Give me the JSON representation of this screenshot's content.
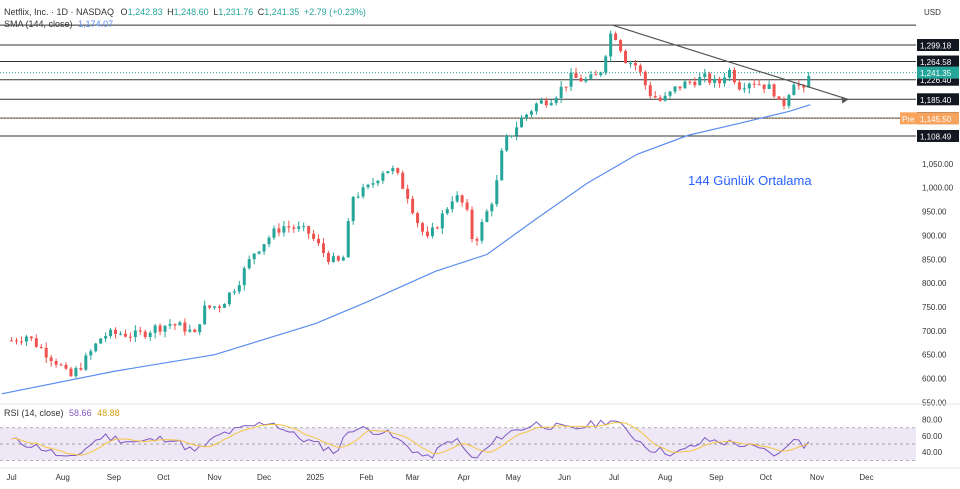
{
  "header": {
    "symbol": "Netflix, Inc. · 1D · NASDAQ",
    "o_label": "O",
    "o_value": "1,242.83",
    "h_label": "H",
    "h_value": "1,248.60",
    "l_label": "L",
    "l_value": "1,231.76",
    "c_label": "C",
    "c_value": "1,241.35",
    "change": "+2.79 (+0.23%)",
    "sma_label": "SMA (144, close)",
    "sma_value": "1,174.07",
    "currency": "USD"
  },
  "rsi": {
    "label": "RSI (14, close)",
    "value": "58.66",
    "ma_value": "48.88",
    "ticks": [
      "80.00",
      "60.00",
      "40.00"
    ],
    "band_upper": 70,
    "band_lower": 30,
    "ylim": [
      28,
      82
    ]
  },
  "annotation": "144 Günlük Ortalama",
  "prev_tag": "Pre",
  "colors": {
    "up": "#26a69a",
    "down": "#ef5350",
    "sma": "#5b8def",
    "rsi_line": "#7e57c2",
    "rsi_ma": "#f5c542",
    "rsi_band": "#ede7f6",
    "level_line": "#333333",
    "trendline": "#555555",
    "annotation": "#2962ff",
    "price_tag": "#26a69a",
    "pre_tag": "#f7a35c"
  },
  "chart_data": {
    "type": "candlestick",
    "title": "Netflix, Inc. · 1D · NASDAQ",
    "ylim": [
      555,
      1360
    ],
    "y_ticks": [
      "1,050.00",
      "1,000.00",
      "950.00",
      "900.00",
      "850.00",
      "800.00",
      "750.00",
      "700.00",
      "650.00",
      "600.00",
      "550.00"
    ],
    "x_ticks": [
      "Jul",
      "Aug",
      "Sep",
      "Oct",
      "Nov",
      "Dec",
      "2025",
      "Feb",
      "Mar",
      "Apr",
      "May",
      "Jun",
      "Jul",
      "Aug",
      "Sep",
      "Oct",
      "Nov",
      "Dec"
    ],
    "horizontal_levels": [
      {
        "value": 1341,
        "label": ""
      },
      {
        "value": 1299.18,
        "label": "1,299.18"
      },
      {
        "value": 1264.58,
        "label": "1,264.58"
      },
      {
        "value": 1226.4,
        "label": "1,226.40"
      },
      {
        "value": 1185.4,
        "label": "1,185.40"
      },
      {
        "value": 1145.8,
        "label": "1,145.80"
      },
      {
        "value": 1108.49,
        "label": "1,108.49"
      }
    ],
    "price_labels": [
      {
        "value": 1241.35,
        "label": "1,241.35",
        "kind": "last"
      },
      {
        "value": 1145.5,
        "label": "1,145.50",
        "kind": "pre"
      }
    ],
    "trendline": {
      "start": [
        "2025-06-30",
        1341
      ],
      "end": [
        "2025-11-20",
        1185
      ]
    },
    "price_path": [
      [
        "2024-07-01",
        680
      ],
      [
        "2024-07-10",
        690
      ],
      [
        "2024-07-20",
        660
      ],
      [
        "2024-07-30",
        630
      ],
      [
        "2024-08-05",
        600
      ],
      [
        "2024-08-15",
        640
      ],
      [
        "2024-08-25",
        690
      ],
      [
        "2024-09-05",
        695
      ],
      [
        "2024-09-15",
        690
      ],
      [
        "2024-09-25",
        705
      ],
      [
        "2024-10-05",
        715
      ],
      [
        "2024-10-15",
        705
      ],
      [
        "2024-10-20",
        690
      ],
      [
        "2024-10-25",
        745
      ],
      [
        "2024-11-05",
        755
      ],
      [
        "2024-11-15",
        800
      ],
      [
        "2024-11-25",
        865
      ],
      [
        "2024-12-05",
        900
      ],
      [
        "2024-12-12",
        920
      ],
      [
        "2024-12-20",
        915
      ],
      [
        "2024-12-28",
        905
      ],
      [
        "2025-01-07",
        860
      ],
      [
        "2025-01-14",
        840
      ],
      [
        "2025-01-20",
        860
      ],
      [
        "2025-01-22",
        980
      ],
      [
        "2025-02-01",
        995
      ],
      [
        "2025-02-12",
        1040
      ],
      [
        "2025-02-18",
        1035
      ],
      [
        "2025-02-26",
        985
      ],
      [
        "2025-03-05",
        920
      ],
      [
        "2025-03-10",
        890
      ],
      [
        "2025-03-18",
        935
      ],
      [
        "2025-03-26",
        985
      ],
      [
        "2025-04-02",
        960
      ],
      [
        "2025-04-07",
        880
      ],
      [
        "2025-04-14",
        940
      ],
      [
        "2025-04-20",
        990
      ],
      [
        "2025-04-25",
        1090
      ],
      [
        "2025-05-05",
        1140
      ],
      [
        "2025-05-15",
        1175
      ],
      [
        "2025-05-25",
        1190
      ],
      [
        "2025-06-05",
        1230
      ],
      [
        "2025-06-15",
        1225
      ],
      [
        "2025-06-22",
        1235
      ],
      [
        "2025-06-30",
        1335
      ],
      [
        "2025-07-08",
        1270
      ],
      [
        "2025-07-15",
        1255
      ],
      [
        "2025-07-22",
        1200
      ],
      [
        "2025-07-30",
        1180
      ],
      [
        "2025-08-08",
        1210
      ],
      [
        "2025-08-18",
        1225
      ],
      [
        "2025-08-26",
        1230
      ],
      [
        "2025-09-02",
        1215
      ],
      [
        "2025-09-08",
        1250
      ],
      [
        "2025-09-15",
        1215
      ],
      [
        "2025-09-22",
        1225
      ],
      [
        "2025-09-30",
        1215
      ],
      [
        "2025-10-07",
        1200
      ],
      [
        "2025-10-10",
        1160
      ],
      [
        "2025-10-14",
        1195
      ],
      [
        "2025-10-18",
        1225
      ],
      [
        "2025-10-24",
        1200
      ],
      [
        "2025-10-28",
        1241
      ]
    ],
    "sma_path": [
      [
        "2024-06-25",
        568
      ],
      [
        "2024-09-01",
        615
      ],
      [
        "2024-11-01",
        650
      ],
      [
        "2025-01-01",
        715
      ],
      [
        "2025-02-01",
        760
      ],
      [
        "2025-03-15",
        825
      ],
      [
        "2025-04-15",
        860
      ],
      [
        "2025-05-15",
        935
      ],
      [
        "2025-06-15",
        1010
      ],
      [
        "2025-07-15",
        1070
      ],
      [
        "2025-08-15",
        1110
      ],
      [
        "2025-09-15",
        1135
      ],
      [
        "2025-10-15",
        1160
      ],
      [
        "2025-10-28",
        1174
      ]
    ],
    "rsi_path": [
      [
        "2024-07-01",
        55
      ],
      [
        "2024-07-20",
        45
      ],
      [
        "2024-08-05",
        30
      ],
      [
        "2024-08-25",
        60
      ],
      [
        "2024-09-15",
        52
      ],
      [
        "2024-10-05",
        58
      ],
      [
        "2024-10-20",
        40
      ],
      [
        "2024-11-05",
        62
      ],
      [
        "2024-12-05",
        78
      ],
      [
        "2024-12-20",
        60
      ],
      [
        "2025-01-14",
        40
      ],
      [
        "2025-01-22",
        70
      ],
      [
        "2025-02-12",
        65
      ],
      [
        "2025-03-10",
        32
      ],
      [
        "2025-03-26",
        58
      ],
      [
        "2025-04-07",
        30
      ],
      [
        "2025-04-25",
        62
      ],
      [
        "2025-05-15",
        75
      ],
      [
        "2025-06-05",
        68
      ],
      [
        "2025-06-30",
        80
      ],
      [
        "2025-07-22",
        45
      ],
      [
        "2025-08-08",
        38
      ],
      [
        "2025-08-26",
        55
      ],
      [
        "2025-09-15",
        50
      ],
      [
        "2025-10-10",
        36
      ],
      [
        "2025-10-18",
        60
      ],
      [
        "2025-10-24",
        45
      ],
      [
        "2025-10-28",
        58.66
      ]
    ]
  }
}
